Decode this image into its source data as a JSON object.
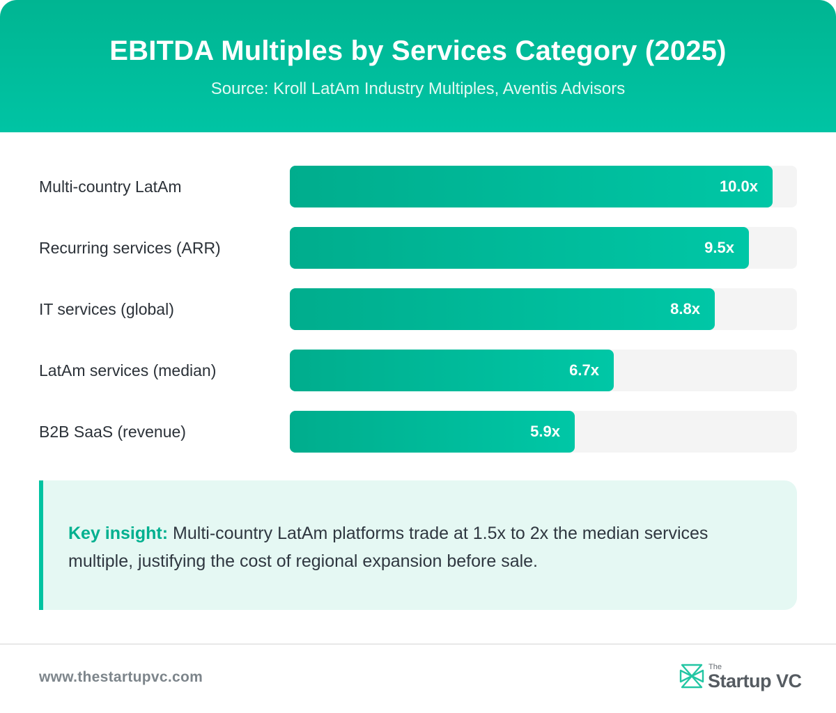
{
  "header": {
    "title": "EBITDA Multiples by Services Category (2025)",
    "source": "Source: Kroll LatAm Industry Multiples, Aventis Advisors"
  },
  "chart_data": {
    "type": "bar",
    "orientation": "horizontal",
    "title": "EBITDA Multiples by Services Category (2025)",
    "categories": [
      "Multi-country LatAm",
      "Recurring services (ARR)",
      "IT services (global)",
      "LatAm services (median)",
      "B2B SaaS (revenue)"
    ],
    "values": [
      10.0,
      9.5,
      8.8,
      6.7,
      5.9
    ],
    "value_labels": [
      "10.0x",
      "9.5x",
      "8.8x",
      "6.7x",
      "5.9x"
    ],
    "xlim": [
      0,
      10.5
    ],
    "colors": {
      "bar": "#00bf9f",
      "track": "#f4f4f4",
      "accent": "#00c3a1"
    }
  },
  "insight": {
    "key": "Key insight:",
    "text": "Multi-country LatAm platforms trade at 1.5x to 2x the median services multiple, justifying the cost of regional expansion before sale."
  },
  "footer": {
    "url": "www.thestartupvc.com",
    "logo_the": "The",
    "logo_name": "Startup VC",
    "logo_icon": "startupvc-logo-icon"
  }
}
